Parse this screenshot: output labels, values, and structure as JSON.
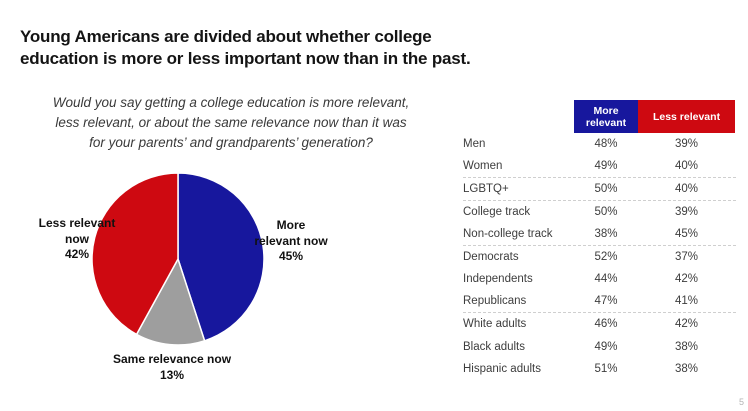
{
  "title": {
    "line1": "Young Americans are divided about whether college",
    "line2": "education is more or less important now than in the past."
  },
  "question": {
    "line1": "Would you say getting a college education is more relevant,",
    "line2": "less relevant, or about the same relevance now than it was",
    "line3": "for your parents’ and grandparents’ generation?"
  },
  "colors": {
    "blue": "#17179D",
    "red": "#CE0911",
    "gray": "#9E9E9E"
  },
  "chart_data": [
    {
      "type": "pie",
      "start_angle": "top",
      "direction": "clockwise",
      "slices": [
        {
          "label": "More relevant now",
          "value": 45,
          "pct_label": "45%",
          "color_key": "blue"
        },
        {
          "label": "Same relevance now",
          "value": 13,
          "pct_label": "13%",
          "color_key": "gray"
        },
        {
          "label": "Less relevant now",
          "value": 42,
          "pct_label": "42%",
          "color_key": "red"
        }
      ]
    },
    {
      "type": "table",
      "columns": [
        "More relevant",
        "Less relevant"
      ],
      "rows": [
        {
          "label": "Men",
          "more": "48%",
          "less": "39%"
        },
        {
          "label": "Women",
          "more": "49%",
          "less": "40%",
          "separator_after": true
        },
        {
          "label": "LGBTQ+",
          "more": "50%",
          "less": "40%",
          "separator_after": true
        },
        {
          "label": "College track",
          "more": "50%",
          "less": "39%"
        },
        {
          "label": "Non-college track",
          "more": "38%",
          "less": "45%",
          "separator_after": true
        },
        {
          "label": "Democrats",
          "more": "52%",
          "less": "37%"
        },
        {
          "label": "Independents",
          "more": "44%",
          "less": "42%"
        },
        {
          "label": "Republicans",
          "more": "47%",
          "less": "41%",
          "separator_after": true
        },
        {
          "label": "White adults",
          "more": "46%",
          "less": "42%"
        },
        {
          "label": "Black adults",
          "more": "49%",
          "less": "38%"
        },
        {
          "label": "Hispanic adults",
          "more": "51%",
          "less": "38%"
        }
      ]
    }
  ],
  "page": {
    "number": "5"
  }
}
